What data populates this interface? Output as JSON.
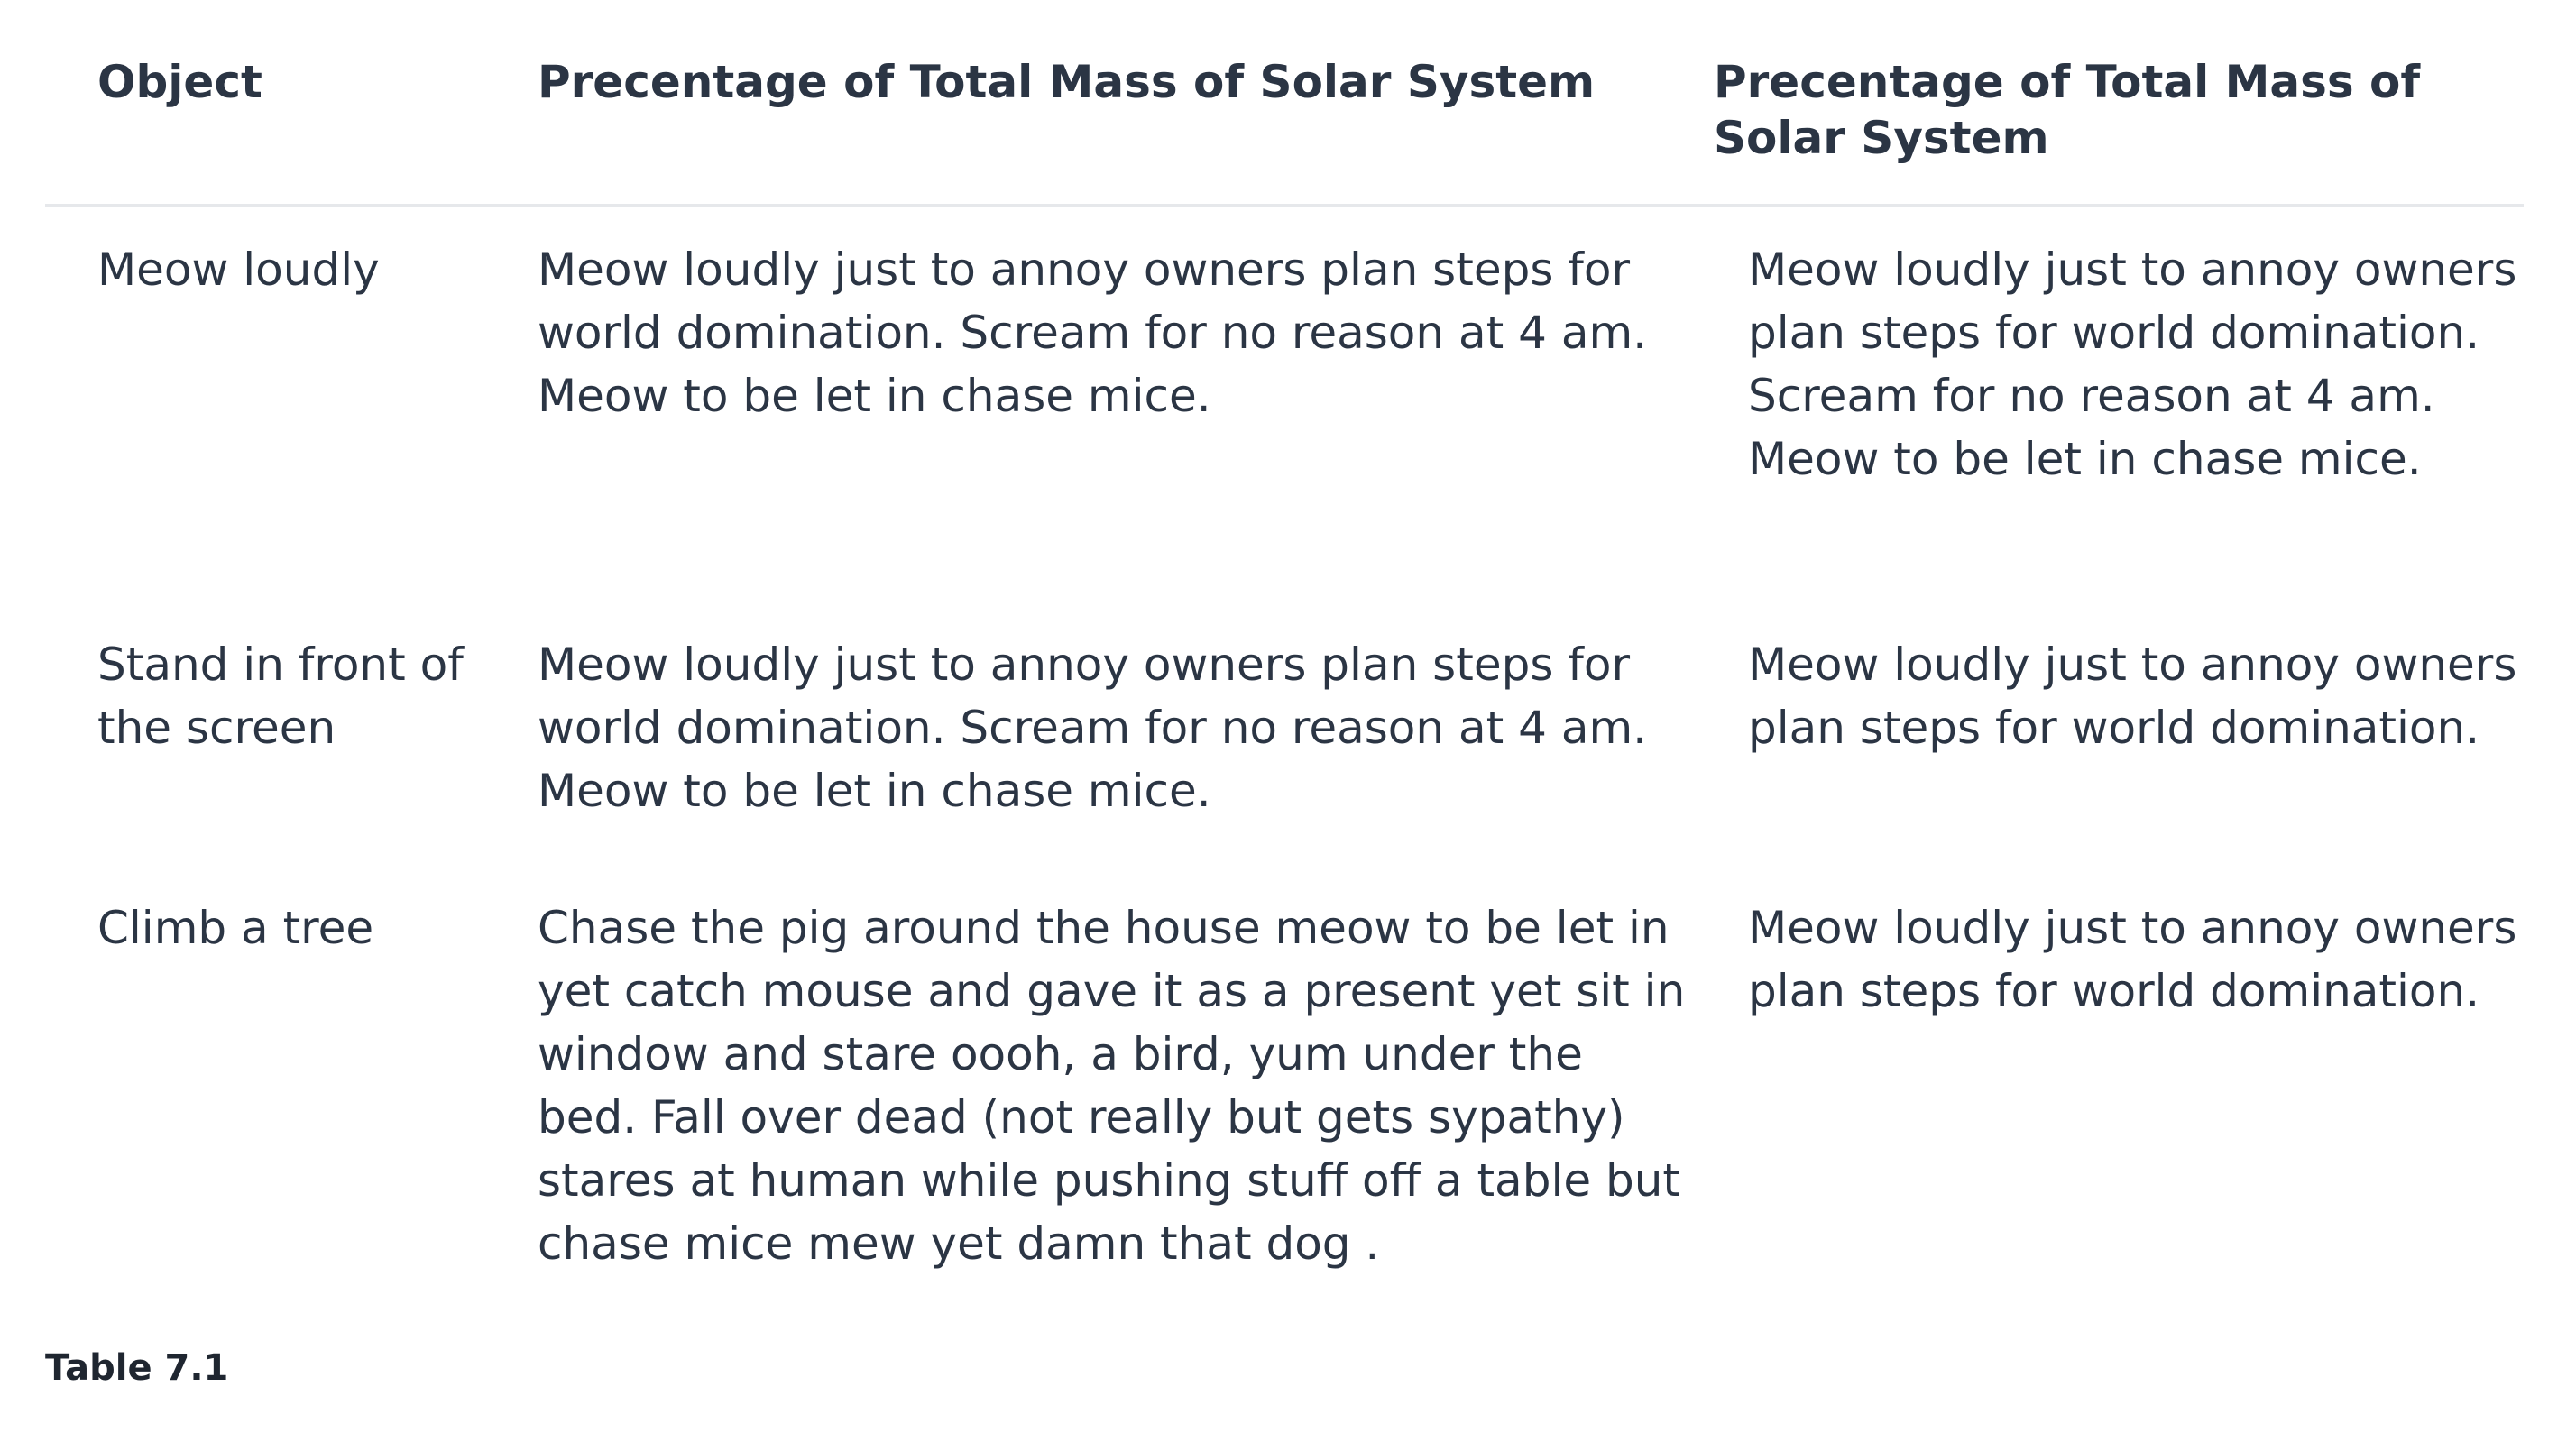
{
  "table": {
    "headers": {
      "object": "Object",
      "mass1": "Precentage of Total Mass of Solar System",
      "mass2": "Precentage of Total Mass of Solar System"
    },
    "rows": [
      {
        "object": "Meow loudly",
        "mass1": "Meow loudly just to annoy owners plan steps for world domination. Scream for no reason at 4 am. Meow to be let in chase mice.",
        "mass2": "Meow loudly just to annoy owners plan steps for world domination. Scream for no reason at 4 am. Meow to be let in chase mice."
      },
      {
        "object": "Stand in front of the screen",
        "mass1": "Meow loudly just to annoy owners plan steps for world domination. Scream for no reason at 4 am. Meow to be let in chase mice.",
        "mass2": "Meow loudly just to annoy owners plan steps for world domination."
      },
      {
        "object": "Climb a tree",
        "mass1": "Chase the pig around the house meow to be let in yet catch mouse and gave it as a present yet sit in window and stare oooh, a bird, yum under the bed. Fall over dead (not really but gets sypathy) stares at human while pushing stuff off a table but chase mice mew yet damn that dog .",
        "mass2": "Meow loudly just to annoy owners plan steps for world domination."
      }
    ]
  },
  "caption": "Table 7.1"
}
